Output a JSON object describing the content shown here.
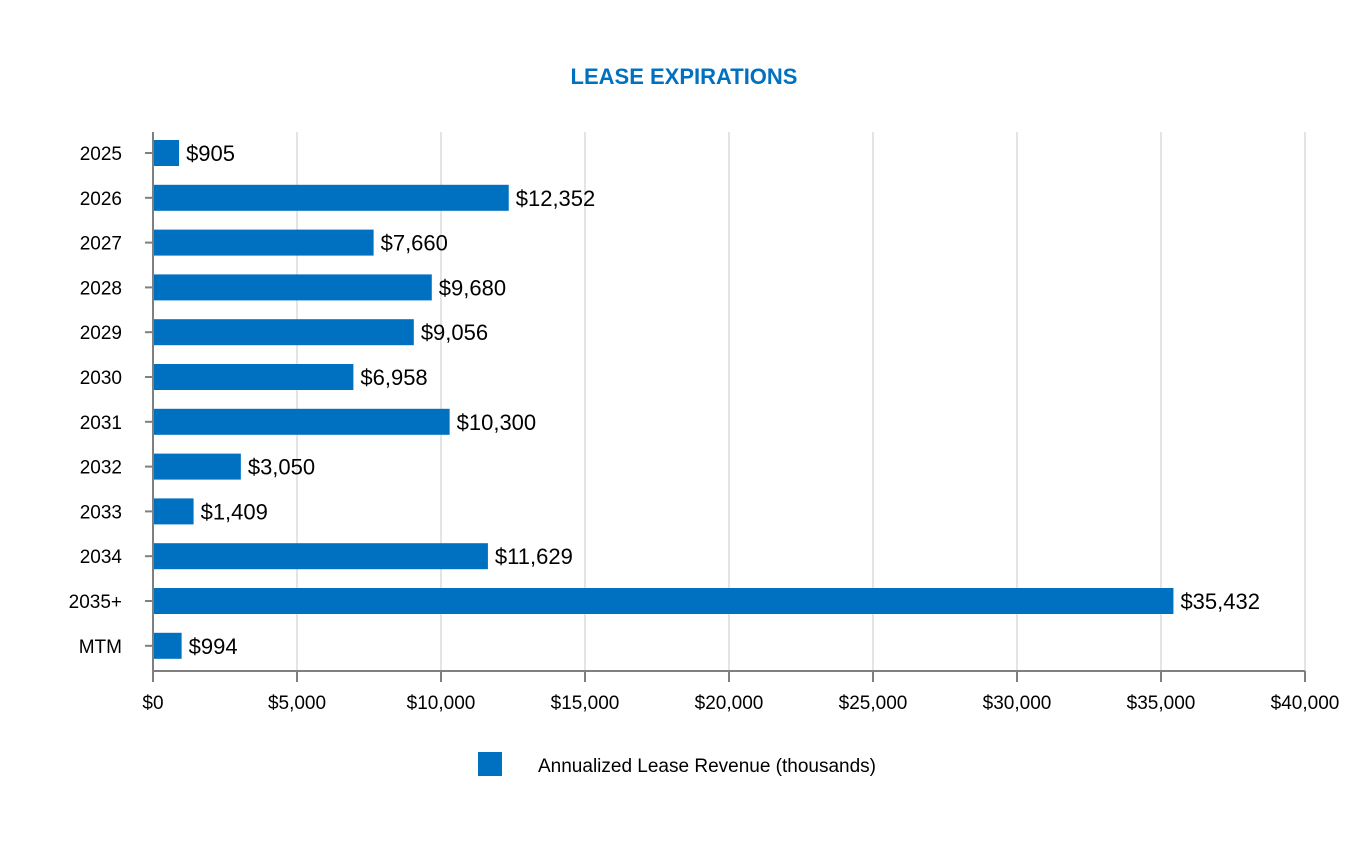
{
  "chart_data": {
    "type": "bar",
    "orientation": "horizontal",
    "title": "LEASE EXPIRATIONS",
    "categories": [
      "2025",
      "2026",
      "2027",
      "2028",
      "2029",
      "2030",
      "2031",
      "2032",
      "2033",
      "2034",
      "2035+",
      "MTM"
    ],
    "series": [
      {
        "name": "Annualized Lease Revenue (thousands)",
        "values": [
          905,
          12352,
          7660,
          9680,
          9056,
          6958,
          10300,
          3050,
          1409,
          11629,
          35432,
          994
        ],
        "data_labels": [
          "$905",
          "$12,352",
          "$7,660",
          "$9,680",
          "$9,056",
          "$6,958",
          "$10,300",
          "$3,050",
          "$1,409",
          "$11,629",
          "$35,432",
          "$994"
        ]
      }
    ],
    "xlim": [
      0,
      40000
    ],
    "x_ticks": [
      0,
      5000,
      10000,
      15000,
      20000,
      25000,
      30000,
      35000,
      40000
    ],
    "x_tick_labels": [
      "$0",
      "$5,000",
      "$10,000",
      "$15,000",
      "$20,000",
      "$25,000",
      "$30,000",
      "$35,000",
      "$40,000"
    ],
    "xlabel": "",
    "ylabel": "",
    "grid": "vertical",
    "legend": "bottom",
    "colors": {
      "bar": "#0070C0",
      "title": "#0070C0",
      "grid": "#E4E4E4",
      "axis": "#7F7F7F"
    }
  }
}
